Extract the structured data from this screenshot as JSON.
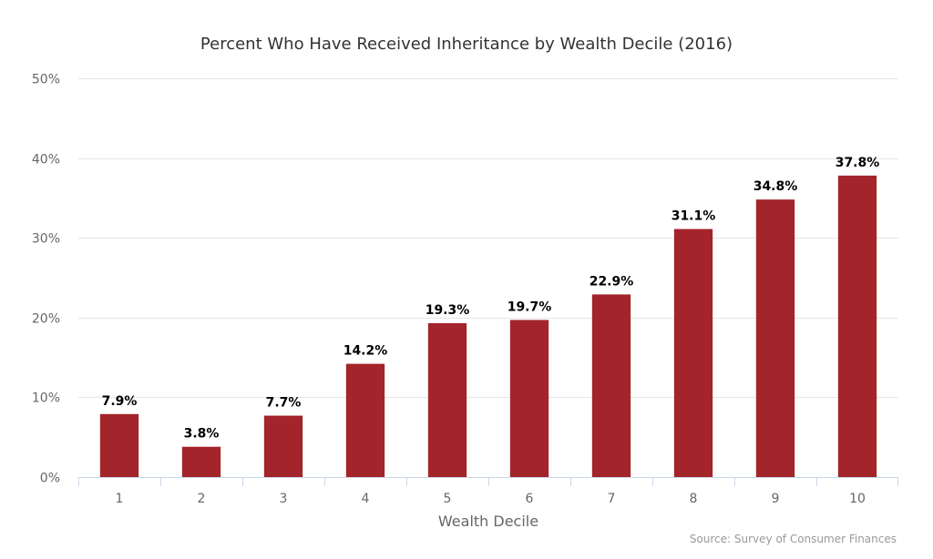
{
  "chart_data": {
    "type": "bar",
    "title": "Percent Who Have Received Inheritance by Wealth Decile (2016)",
    "xlabel": "Wealth Decile",
    "ylabel": "",
    "categories": [
      "1",
      "2",
      "3",
      "4",
      "5",
      "6",
      "7",
      "8",
      "9",
      "10"
    ],
    "values": [
      7.9,
      3.8,
      7.7,
      14.2,
      19.3,
      19.7,
      22.9,
      31.1,
      34.8,
      37.8
    ],
    "data_labels": [
      "7.9%",
      "3.8%",
      "7.7%",
      "14.2%",
      "19.3%",
      "19.7%",
      "22.9%",
      "31.1%",
      "34.8%",
      "37.8%"
    ],
    "ylim": [
      0,
      50
    ],
    "yticks": [
      0,
      10,
      20,
      30,
      40,
      50
    ],
    "ytick_labels": [
      "0%",
      "10%",
      "20%",
      "30%",
      "40%",
      "50%"
    ],
    "grid": true,
    "legend": "none",
    "bar_color": "#a3242a",
    "source": "Source: Survey of Consumer Finances"
  }
}
